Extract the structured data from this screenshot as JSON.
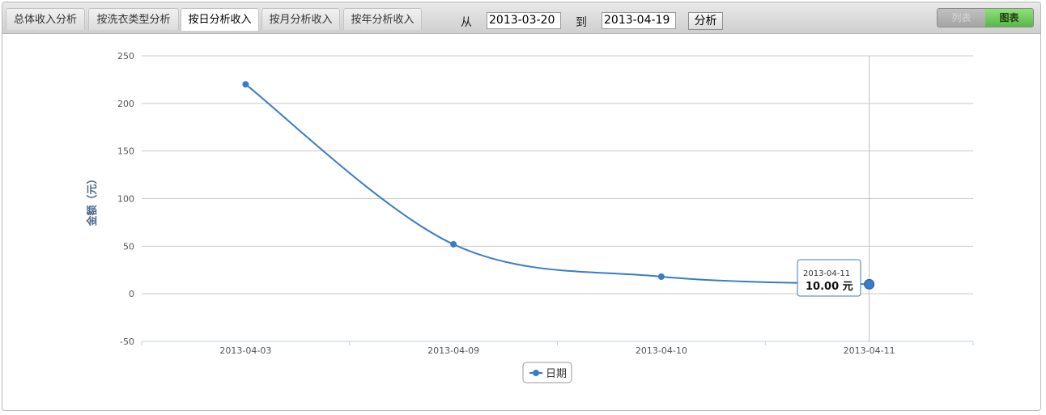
{
  "tabs": [
    {
      "label": "总体收入分析",
      "active": false
    },
    {
      "label": "按洗衣类型分析",
      "active": false
    },
    {
      "label": "按日分析收入",
      "active": true
    },
    {
      "label": "按月分析收入",
      "active": false
    },
    {
      "label": "按年分析收入",
      "active": false
    }
  ],
  "filter": {
    "from_label": "从",
    "from_value": "2013-03-20",
    "to_label": "到",
    "to_value": "2013-04-19",
    "analyze_label": "分析"
  },
  "view_toggle": {
    "list_label": "列表",
    "chart_label": "图表",
    "selected": "chart"
  },
  "colors": {
    "series": "#3a7bc8",
    "tab_active_bg": "#ffffff",
    "toggle_on": "#6ccb56"
  },
  "chart_data": {
    "type": "line",
    "categories": [
      "2013-04-03",
      "2013-04-09",
      "2013-04-10",
      "2013-04-11"
    ],
    "series": [
      {
        "name": "日期",
        "values": [
          220,
          52,
          18,
          10
        ]
      }
    ],
    "ylabel": "金额（元）",
    "ylim": [
      -50,
      250
    ],
    "yticks": [
      -50,
      0,
      50,
      100,
      150,
      200,
      250
    ],
    "grid": true,
    "legend": "bottom-center",
    "tooltip": {
      "x": "2013-04-11",
      "value": "10.00 元"
    }
  }
}
